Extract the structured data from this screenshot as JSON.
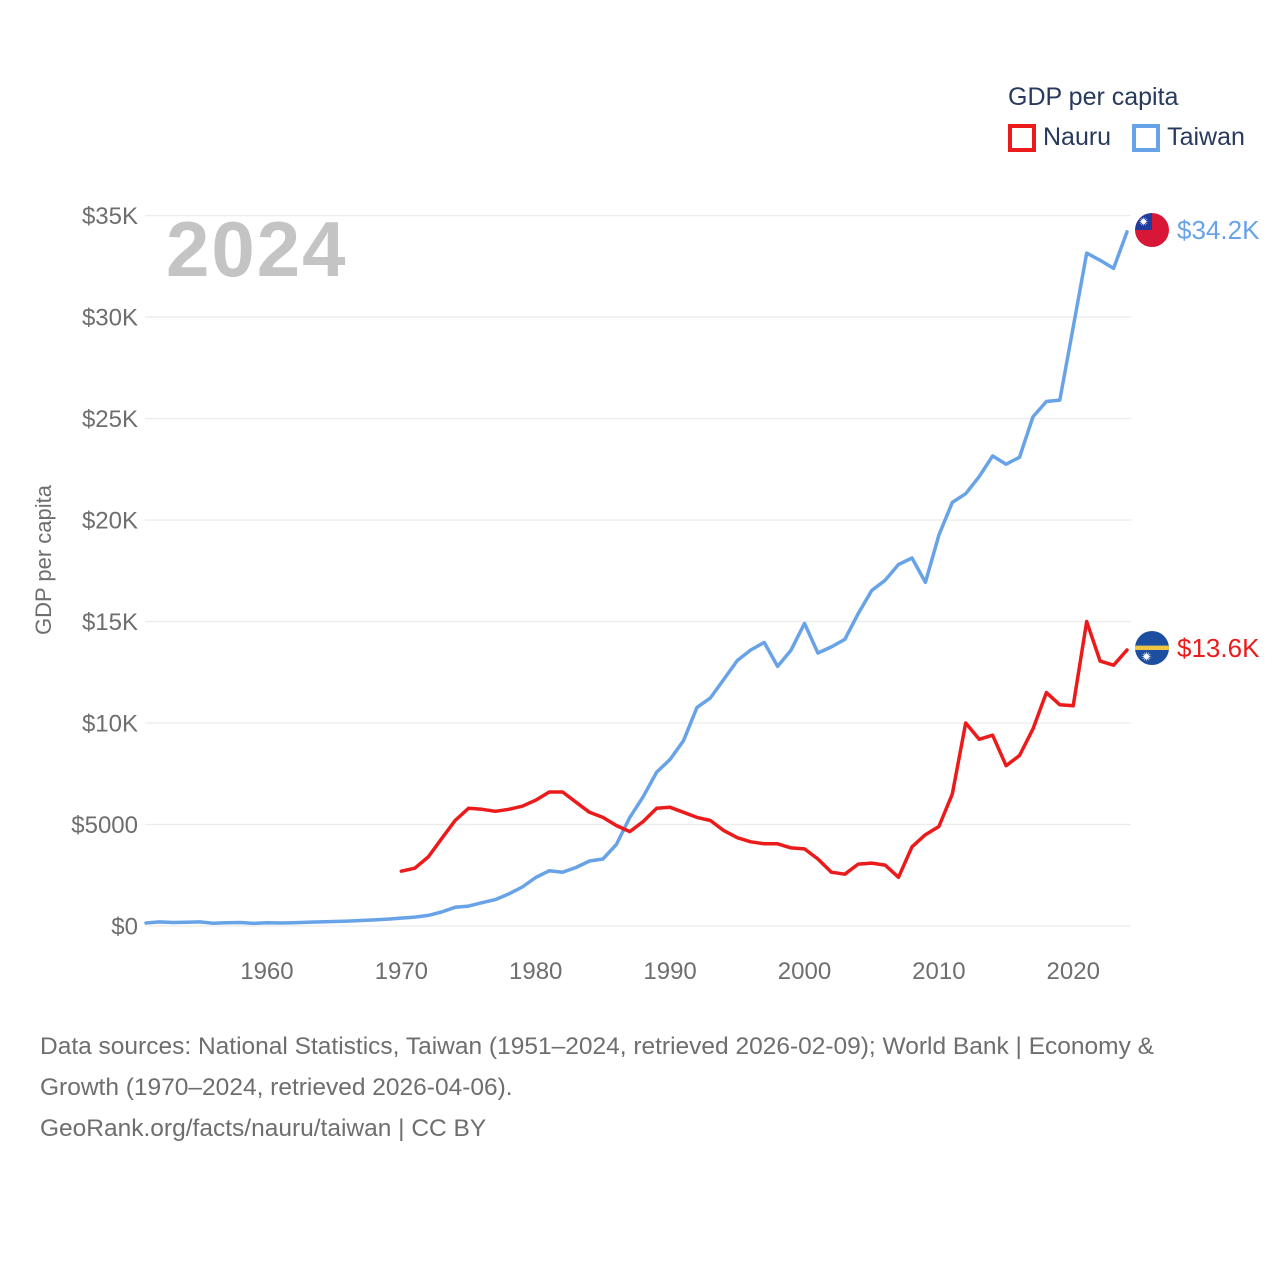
{
  "legend": {
    "title": "GDP per capita",
    "items": [
      {
        "label": "Nauru",
        "color": "#ec1b1b"
      },
      {
        "label": "Taiwan",
        "color": "#68a3e8"
      }
    ]
  },
  "watermark": "2024",
  "y_axis_title": "GDP per capita",
  "end_labels": {
    "taiwan": "$34.2K",
    "nauru": "$13.6K"
  },
  "footer": {
    "sources_line1": "Data sources: National Statistics, Taiwan (1951–2024, retrieved 2026-02-09); World Bank | Economy &",
    "sources_line2": "Growth (1970–2024, retrieved 2026-04-06).",
    "attribution": "GeoRank.org/facts/nauru/taiwan | CC BY"
  },
  "chart_data": {
    "type": "line",
    "title": "GDP per capita",
    "ylabel": "GDP per capita",
    "xlim": [
      1951,
      2024
    ],
    "ylim": [
      0,
      35000
    ],
    "grid": "horizontal",
    "legend_position": "top-right",
    "y_ticks": [
      {
        "value": 0,
        "label": "$0"
      },
      {
        "value": 5000,
        "label": "$5000"
      },
      {
        "value": 10000,
        "label": "$10K"
      },
      {
        "value": 15000,
        "label": "$15K"
      },
      {
        "value": 20000,
        "label": "$20K"
      },
      {
        "value": 25000,
        "label": "$25K"
      },
      {
        "value": 30000,
        "label": "$30K"
      },
      {
        "value": 35000,
        "label": "$35K"
      }
    ],
    "x_ticks": [
      1960,
      1970,
      1980,
      1990,
      2000,
      2010,
      2020
    ],
    "x": [
      1951,
      1952,
      1953,
      1954,
      1955,
      1956,
      1957,
      1958,
      1959,
      1960,
      1961,
      1962,
      1963,
      1964,
      1965,
      1966,
      1967,
      1968,
      1969,
      1970,
      1971,
      1972,
      1973,
      1974,
      1975,
      1976,
      1977,
      1978,
      1979,
      1980,
      1981,
      1982,
      1983,
      1984,
      1985,
      1986,
      1987,
      1988,
      1989,
      1990,
      1991,
      1992,
      1993,
      1994,
      1995,
      1996,
      1997,
      1998,
      1999,
      2000,
      2001,
      2002,
      2003,
      2004,
      2005,
      2006,
      2007,
      2008,
      2009,
      2010,
      2011,
      2012,
      2013,
      2014,
      2015,
      2016,
      2017,
      2018,
      2019,
      2020,
      2021,
      2022,
      2023,
      2024
    ],
    "series": [
      {
        "name": "Taiwan",
        "color": "#68a3e8",
        "end_value_label": "$34.2K",
        "values": [
          150,
          200,
          170,
          180,
          200,
          140,
          160,
          170,
          130,
          160,
          150,
          160,
          180,
          200,
          220,
          240,
          270,
          300,
          340,
          390,
          440,
          520,
          690,
          920,
          980,
          1150,
          1300,
          1580,
          1920,
          2390,
          2720,
          2650,
          2880,
          3200,
          3300,
          4010,
          5350,
          6370,
          7580,
          8210,
          9130,
          10770,
          11240,
          12150,
          13080,
          13600,
          13970,
          12790,
          13590,
          14910,
          13450,
          13750,
          14120,
          15390,
          16530,
          17030,
          17810,
          18130,
          16930,
          19260,
          20870,
          21300,
          22140,
          23160,
          22750,
          23090,
          25080,
          25840,
          25910,
          29500,
          33150,
          32800,
          32400,
          34200
        ]
      },
      {
        "name": "Nauru",
        "color": "#ec1b1b",
        "end_value_label": "$13.6K",
        "values": [
          null,
          null,
          null,
          null,
          null,
          null,
          null,
          null,
          null,
          null,
          null,
          null,
          null,
          null,
          null,
          null,
          null,
          null,
          null,
          2700,
          2850,
          3400,
          4300,
          5200,
          5800,
          5750,
          5650,
          5750,
          5900,
          6200,
          6600,
          6600,
          6100,
          5600,
          5350,
          4950,
          4650,
          5150,
          5800,
          5850,
          5600,
          5350,
          5200,
          4700,
          4350,
          4150,
          4050,
          4050,
          3850,
          3800,
          3300,
          2650,
          2550,
          3050,
          3100,
          3000,
          2400,
          3900,
          4500,
          4900,
          6500,
          10000,
          9200,
          9400,
          7900,
          8400,
          9700,
          11500,
          10900,
          10850,
          15000,
          13050,
          12850,
          13600
        ]
      }
    ]
  }
}
